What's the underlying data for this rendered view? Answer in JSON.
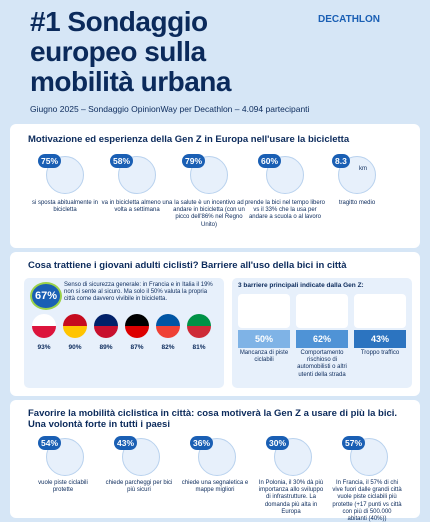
{
  "header": {
    "title_lines": [
      "#1 Sondaggio",
      "europeo sulla",
      "mobilità urbana"
    ],
    "brand": "DECATHLON",
    "subtitle": "Giugno 2025 – Sondaggio OpinionWay per Decathlon – 4.094 partecipanti"
  },
  "motivation": {
    "title": "Motivazione ed esperienza della Gen Z in Europa nell'usare la bicicletta",
    "items": [
      {
        "value": "75%",
        "text": "si sposta abitualmente in bicicletta"
      },
      {
        "value": "58%",
        "text": "va in bicicletta almeno una volta a settimana"
      },
      {
        "value": "79%",
        "text": "la salute è un incentivo ad andare in bicicletta (con un picco dell'86% nel Regno Unito)"
      },
      {
        "value": "60%",
        "text": "prende la bici nel tempo libero vs il 33% che la usa per andare a scuola o al lavoro"
      }
    ],
    "distance": {
      "value": "8.3",
      "unit": "km",
      "text": "tragitto medio"
    }
  },
  "barriers": {
    "title": "Cosa trattiene i giovani adulti ciclisti? Barriere all'uso della bici in città",
    "safety": {
      "value": "67%",
      "text": "Senso di sicurezza generale: in Francia e in Italia il 19% non si sente al sicuro. Ma solo il 50% valuta la propria città come davvero vivibile in bicicletta."
    },
    "countries": [
      "93%",
      "90%",
      "89%",
      "87%",
      "82%",
      "81%"
    ],
    "top_title": "3 barriere principali indicate dalla Gen Z:",
    "top": [
      {
        "value": "50%",
        "text": "Mancanza di piste ciclabili"
      },
      {
        "value": "62%",
        "text": "Comportamento rischioso di automobilisti o altri utenti della strada"
      },
      {
        "value": "43%",
        "text": "Troppo traffico"
      }
    ]
  },
  "future": {
    "title": "Favorire la mobilità ciclistica in città: cosa motiverà la Gen Z a usare di più la bici. Una volontà forte in tutti i paesi",
    "items": [
      {
        "value": "54%",
        "text": "vuole piste ciclabili protette"
      },
      {
        "value": "43%",
        "text": "chiede parcheggi per bici più sicuri"
      },
      {
        "value": "36%",
        "text": "chiede una segnaletica e mappe migliori"
      },
      {
        "value": "30%",
        "text": "In Polonia, il 30% dà più importanza allo sviluppo di infrastrutture. La domanda più alta in Europa"
      },
      {
        "value": "57%",
        "text": "In Francia, il 57% di chi vive fuori dalle grandi città vuole piste ciclabili più protette (+17 punti vs città con più di 500.000 abitanti (40%))"
      }
    ]
  }
}
